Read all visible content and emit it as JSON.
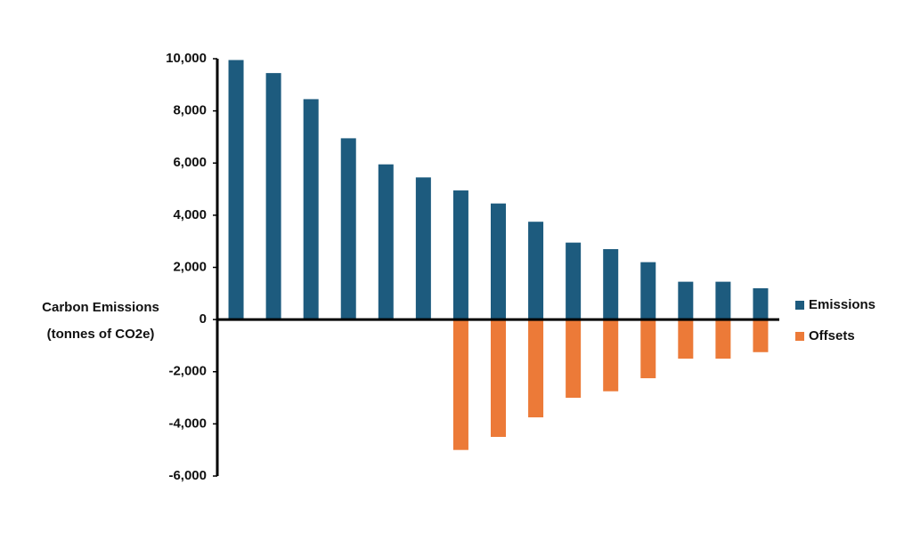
{
  "chart_data": {
    "type": "bar",
    "ylabel": [
      "Carbon Emissions",
      "(tonnes of CO2e)"
    ],
    "categories": [
      null,
      null,
      null,
      null,
      null,
      null,
      null,
      null,
      null,
      null,
      null,
      null,
      null,
      null,
      null
    ],
    "series": [
      {
        "name": "Emissions",
        "color": "#1d5b7e",
        "values": [
          9950,
          9450,
          8450,
          6950,
          5950,
          5450,
          4950,
          4450,
          3750,
          2950,
          2700,
          2200,
          1450,
          1450,
          1200
        ]
      },
      {
        "name": "Offsets",
        "color": "#ec7a38",
        "values": [
          null,
          null,
          null,
          null,
          null,
          null,
          -5000,
          -4500,
          -3750,
          -3000,
          -2750,
          -2250,
          -1500,
          -1500,
          -1250
        ]
      }
    ],
    "ylim": [
      -6000,
      10000
    ],
    "yticks": [
      {
        "value": -6000,
        "label": "-6,000"
      },
      {
        "value": -4000,
        "label": "-4,000"
      },
      {
        "value": -2000,
        "label": "-2,000"
      },
      0,
      {
        "value": 2000,
        "label": "2,000"
      },
      {
        "value": 4000,
        "label": "4,000"
      },
      {
        "value": 6000,
        "label": "6,000"
      },
      {
        "value": 8000,
        "label": "8,000"
      },
      {
        "value": 10000,
        "label": "10,000"
      }
    ],
    "grid": false,
    "legend": "right"
  }
}
